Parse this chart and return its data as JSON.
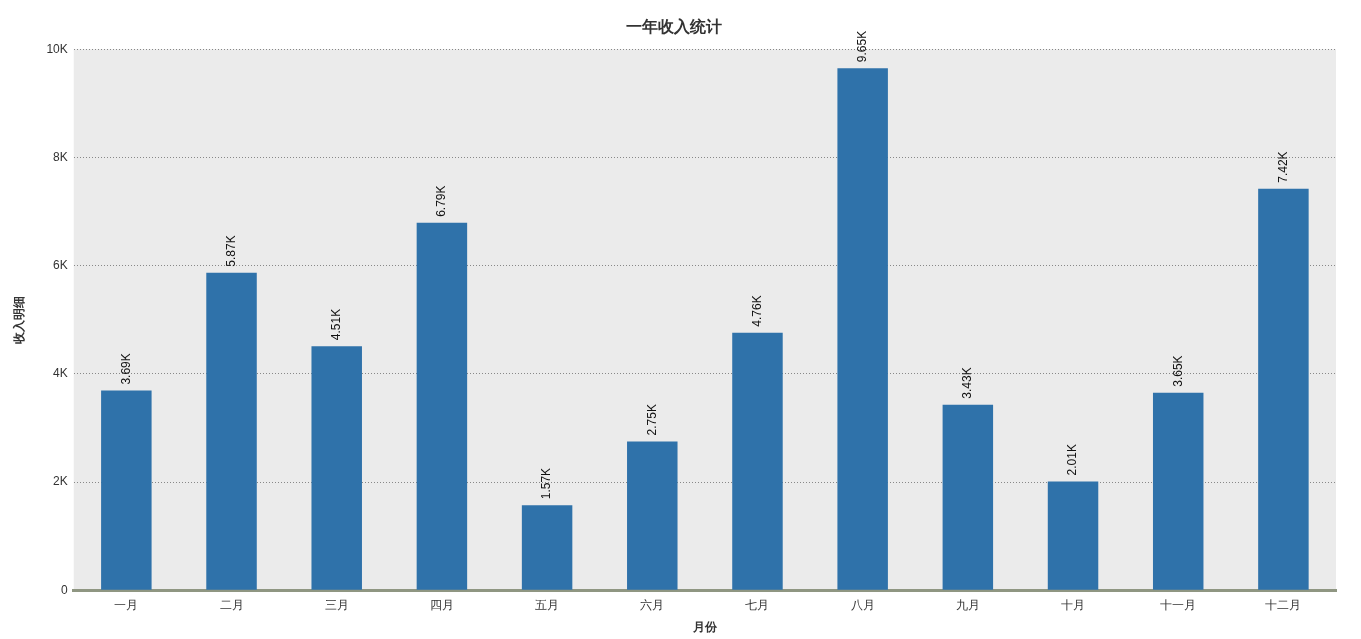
{
  "chart_data": {
    "type": "bar",
    "title": "一年收入统计",
    "xlabel": "月份",
    "ylabel": "收入明细",
    "categories": [
      "一月",
      "二月",
      "三月",
      "四月",
      "五月",
      "六月",
      "七月",
      "八月",
      "九月",
      "十月",
      "十一月",
      "十二月"
    ],
    "values": [
      3690,
      5870,
      4510,
      6790,
      1570,
      2750,
      4760,
      9650,
      3430,
      2010,
      3650,
      7420
    ],
    "value_labels": [
      "3.69K",
      "5.87K",
      "4.51K",
      "6.79K",
      "1.57K",
      "2.75K",
      "4.76K",
      "9.65K",
      "3.43K",
      "2.01K",
      "3.65K",
      "7.42K"
    ],
    "color": "#2f72aa",
    "ylim": [
      0,
      10000
    ],
    "yticks": [
      {
        "value": 0,
        "label": "0"
      },
      {
        "value": 2000,
        "label": "2K"
      },
      {
        "value": 4000,
        "label": "4K"
      },
      {
        "value": 6000,
        "label": "6K"
      },
      {
        "value": 8000,
        "label": "8K"
      },
      {
        "value": 10000,
        "label": "10K"
      }
    ],
    "grid": "y"
  }
}
